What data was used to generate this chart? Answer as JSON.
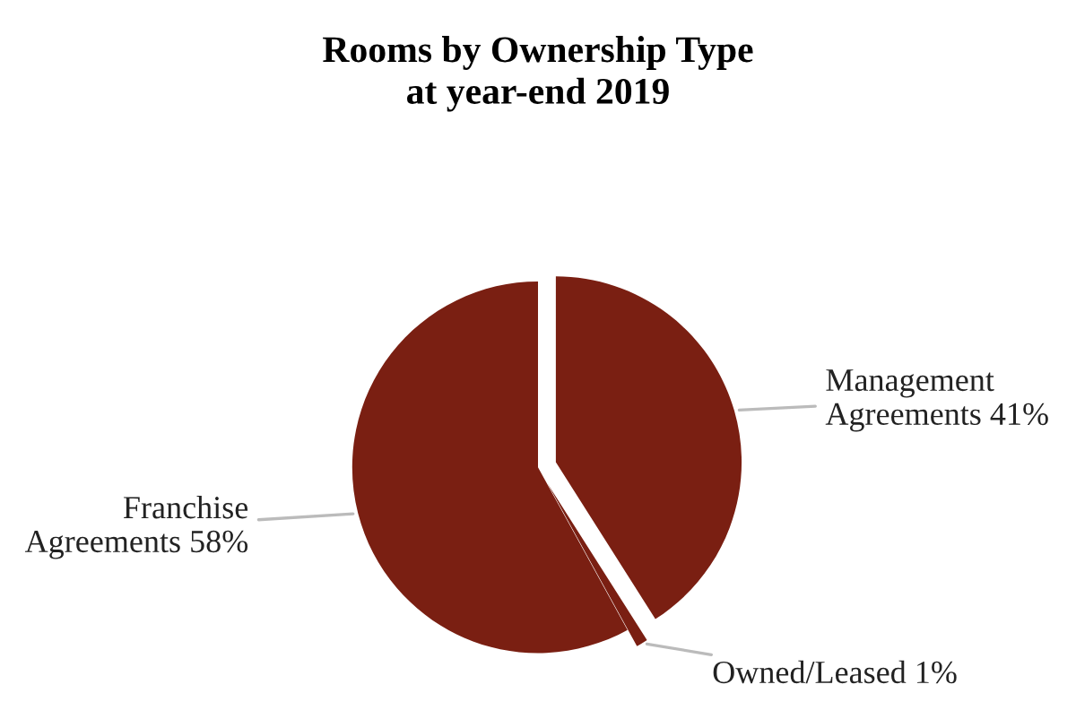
{
  "chart_data": {
    "type": "pie",
    "title": "Rooms by Ownership Type\nat year-end 2019",
    "categories": [
      "Management Agreements",
      "Owned/Leased",
      "Franchise Agreements"
    ],
    "values": [
      41,
      1,
      58
    ],
    "value_labels": [
      "41%",
      "1%",
      "58%"
    ],
    "colors": [
      "#7a1f12",
      "#7a1f12",
      "#7a1f12"
    ],
    "legend": false
  }
}
